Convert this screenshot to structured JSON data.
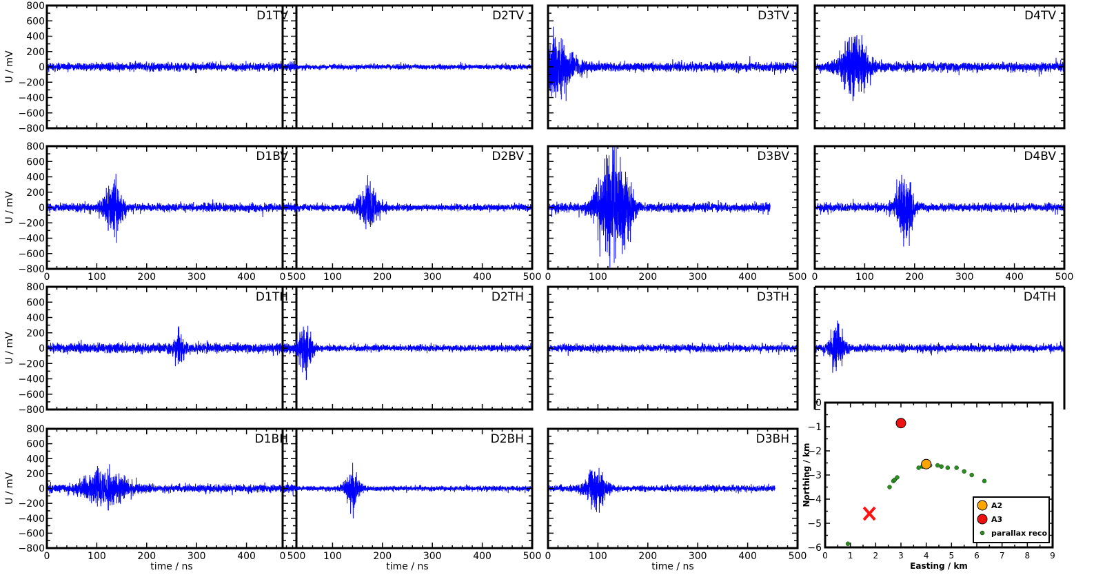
{
  "figure": {
    "ylabel": "U / mV",
    "xlabel": "time / ns"
  },
  "chart_data": [
    {
      "type": "line",
      "panel_type": "trace-grid",
      "rows": 4,
      "cols": 4,
      "xlim": [
        0,
        500
      ],
      "ylim": [
        -800,
        800
      ],
      "xticks": [
        "0",
        "100",
        "200",
        "300",
        "400",
        "500"
      ],
      "yticks": [
        "800",
        "600",
        "400",
        "200",
        "0",
        "−200",
        "−400",
        "−600",
        "−800"
      ],
      "ylabel": "U / mV",
      "xlabel": "time / ns",
      "line_color": "#0000ff",
      "grid": false,
      "series": [
        {
          "name": "D1TV",
          "row": 0,
          "col": 0,
          "x_end": 500,
          "noise_mv": 45,
          "bursts": []
        },
        {
          "name": "D2TV",
          "row": 0,
          "col": 1,
          "x_end": 500,
          "noise_mv": 28,
          "bursts": []
        },
        {
          "name": "D3TV",
          "row": 0,
          "col": 2,
          "x_end": 500,
          "noise_mv": 50,
          "bursts": [
            {
              "t": 15,
              "peak_mv": 310,
              "width_ns": 25
            }
          ]
        },
        {
          "name": "D4TV",
          "row": 0,
          "col": 3,
          "x_end": 500,
          "noise_mv": 50,
          "bursts": [
            {
              "t": 80,
              "peak_mv": 310,
              "width_ns": 20
            }
          ]
        },
        {
          "name": "D1BV",
          "row": 1,
          "col": 0,
          "x_end": 500,
          "noise_mv": 45,
          "bursts": [
            {
              "t": 133,
              "peak_mv": 330,
              "width_ns": 12
            }
          ]
        },
        {
          "name": "D2BV",
          "row": 1,
          "col": 1,
          "x_end": 500,
          "noise_mv": 35,
          "bursts": [
            {
              "t": 172,
              "peak_mv": 230,
              "width_ns": 15
            }
          ]
        },
        {
          "name": "D3BV",
          "row": 1,
          "col": 2,
          "x_end": 445,
          "noise_mv": 48,
          "bursts": [
            {
              "t": 125,
              "peak_mv": 550,
              "width_ns": 20
            },
            {
              "t": 160,
              "peak_mv": 300,
              "width_ns": 8
            }
          ]
        },
        {
          "name": "D4BV",
          "row": 1,
          "col": 3,
          "x_end": 500,
          "noise_mv": 45,
          "bursts": [
            {
              "t": 180,
              "peak_mv": 360,
              "width_ns": 12
            }
          ]
        },
        {
          "name": "D1TH",
          "row": 2,
          "col": 0,
          "x_end": 500,
          "noise_mv": 55,
          "bursts": [
            {
              "t": 265,
              "peak_mv": 180,
              "width_ns": 6
            }
          ]
        },
        {
          "name": "D2TH",
          "row": 2,
          "col": 1,
          "x_end": 500,
          "noise_mv": 35,
          "bursts": [
            {
              "t": 45,
              "peak_mv": 290,
              "width_ns": 10
            }
          ]
        },
        {
          "name": "D3TH",
          "row": 2,
          "col": 2,
          "x_end": 500,
          "noise_mv": 40,
          "bursts": []
        },
        {
          "name": "D4TH",
          "row": 2,
          "col": 3,
          "x_end": 500,
          "noise_mv": 42,
          "bursts": [
            {
              "t": 45,
              "peak_mv": 240,
              "width_ns": 10
            }
          ]
        },
        {
          "name": "D1BH",
          "row": 3,
          "col": 0,
          "x_end": 500,
          "noise_mv": 45,
          "bursts": [
            {
              "t": 115,
              "peak_mv": 200,
              "width_ns": 30
            }
          ]
        },
        {
          "name": "D2BH",
          "row": 3,
          "col": 1,
          "x_end": 500,
          "noise_mv": 28,
          "bursts": [
            {
              "t": 140,
              "peak_mv": 200,
              "width_ns": 10
            }
          ]
        },
        {
          "name": "D3BH",
          "row": 3,
          "col": 2,
          "x_end": 455,
          "noise_mv": 35,
          "bursts": [
            {
              "t": 95,
              "peak_mv": 220,
              "width_ns": 15
            }
          ]
        }
      ]
    },
    {
      "type": "scatter",
      "panel_type": "map",
      "xlabel": "Easting / km",
      "ylabel": "Northing / km",
      "xlim": [
        0,
        9
      ],
      "ylim": [
        -6,
        0
      ],
      "xticks": [
        "0",
        "1",
        "2",
        "3",
        "4",
        "5",
        "6",
        "7",
        "8",
        "9"
      ],
      "yticks": [
        "0",
        "−1",
        "−2",
        "−3",
        "−4",
        "−5",
        "−6"
      ],
      "legend_position": "bottom-right",
      "series": [
        {
          "name": "A2",
          "color": "#ffa500",
          "marker": "circle-large",
          "points": [
            [
              4.0,
              -2.55
            ]
          ]
        },
        {
          "name": "A3",
          "color": "#ee1111",
          "marker": "circle-large",
          "points": [
            [
              3.0,
              -0.85
            ]
          ]
        },
        {
          "name": "parallax reco",
          "color": "#2e8b22",
          "marker": "circle-small",
          "points": [
            [
              0.9,
              -5.85
            ],
            [
              2.55,
              -3.5
            ],
            [
              2.7,
              -3.25
            ],
            [
              2.75,
              -3.2
            ],
            [
              2.85,
              -3.1
            ],
            [
              3.7,
              -2.7
            ],
            [
              3.85,
              -2.65
            ],
            [
              3.95,
              -2.6
            ],
            [
              4.05,
              -2.55
            ],
            [
              4.15,
              -2.6
            ],
            [
              4.45,
              -2.6
            ],
            [
              4.6,
              -2.65
            ],
            [
              4.85,
              -2.7
            ],
            [
              5.2,
              -2.7
            ],
            [
              5.5,
              -2.85
            ],
            [
              5.8,
              -3.0
            ],
            [
              6.3,
              -3.25
            ]
          ]
        }
      ],
      "marker_x": {
        "color": "#ff1111",
        "point": [
          1.75,
          -4.6
        ]
      }
    }
  ]
}
